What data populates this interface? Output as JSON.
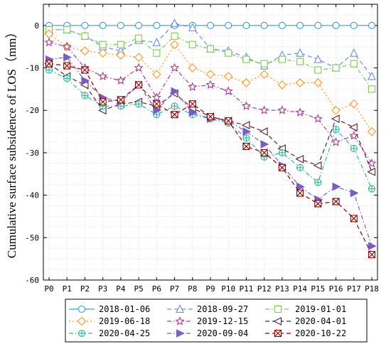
{
  "chart_data": {
    "type": "line",
    "ylabel": "Cumulative surface subsidence of LOS（mm）",
    "ylim": [
      -60,
      5
    ],
    "yticks": [
      0,
      -10,
      -20,
      -30,
      -40,
      -50,
      -60
    ],
    "grid": true,
    "legend_position": "bottom",
    "categories": [
      "P0",
      "P1",
      "P2",
      "P3",
      "P4",
      "P5",
      "P6",
      "P7",
      "P8",
      "P9",
      "P10",
      "P11",
      "P12",
      "P13",
      "P14",
      "P15",
      "P16",
      "P17",
      "P18"
    ],
    "series": [
      {
        "name": "2018-01-06",
        "color": "#2d9ee0",
        "dash": "",
        "marker": "circle",
        "values": [
          0,
          0,
          0,
          0,
          0,
          0,
          0,
          0,
          0,
          0,
          0,
          0,
          0,
          0,
          0,
          0,
          0,
          0,
          0
        ]
      },
      {
        "name": "2018-09-27",
        "color": "#6a8fe0",
        "dash": "6,4",
        "marker": "triangle-up",
        "values": [
          -1,
          -1,
          -2.5,
          -5,
          -6,
          -3.5,
          -4,
          0.5,
          -0.5,
          -5.5,
          -6,
          -7.5,
          -9.5,
          -7,
          -6.5,
          -8,
          -10,
          -6.5,
          -12
        ]
      },
      {
        "name": "2019-01-01",
        "color": "#7ec850",
        "dash": "6,3,1.5,3",
        "marker": "square",
        "values": [
          -1,
          -1,
          -2.5,
          -4.5,
          -4.5,
          -3,
          -6.5,
          -2.5,
          -4.5,
          -5.5,
          -6.5,
          -8,
          -9,
          -8,
          -8.5,
          -10.5,
          -10,
          -9,
          -15
        ]
      },
      {
        "name": "2019-06-18",
        "color": "#f7941d",
        "dash": "2,3",
        "marker": "diamond",
        "values": [
          -2,
          -5,
          -6,
          -6.5,
          -7,
          -7.5,
          -11.5,
          -4.5,
          -10,
          -11.5,
          -12,
          -13.5,
          -11.5,
          -14,
          -13.5,
          -13.5,
          -20,
          -18.5,
          -25
        ]
      },
      {
        "name": "2019-12-15",
        "color": "#a63c8f",
        "dash": "6,3,1.5,3",
        "marker": "star",
        "values": [
          -4,
          -5,
          -10,
          -12,
          -13,
          -10,
          -17,
          -10,
          -14.5,
          -14,
          -15.5,
          -19,
          -20,
          -20,
          -20.5,
          -22,
          -27.5,
          -26,
          -32.5
        ]
      },
      {
        "name": "2020-04-01",
        "color": "#5a1f2e",
        "dash": "6,4",
        "marker": "triangle-left",
        "values": [
          -9,
          -12,
          -14,
          -20,
          -18.5,
          -18,
          -19,
          -16,
          -19.5,
          -21.5,
          -22.5,
          -23.5,
          -25,
          -29,
          -31.5,
          -33,
          -22,
          -24,
          -34.5
        ]
      },
      {
        "name": "2020-04-25",
        "color": "#2eb39a",
        "dash": "6,3,1.5,3",
        "marker": "circle-plus",
        "values": [
          -10.5,
          -12.5,
          -16.5,
          -19,
          -19,
          -18.5,
          -21,
          -19,
          -21,
          -22,
          -23,
          -26.5,
          -31,
          -30,
          -33.5,
          -37,
          -24.5,
          -29,
          -38.5
        ]
      },
      {
        "name": "2020-09-04",
        "color": "#7a5cc4",
        "dash": "6,3,1.5,3",
        "marker": "triangle-right",
        "values": [
          -8,
          -7.5,
          -13,
          -17,
          -18,
          -14,
          -20,
          -15.5,
          -20.5,
          -22,
          -22.5,
          -25,
          -28,
          -33,
          -38,
          -41,
          -38,
          -39.5,
          -52
        ]
      },
      {
        "name": "2020-10-22",
        "color": "#8b0000",
        "dash": "6,4",
        "marker": "x-square",
        "values": [
          -9,
          -9.5,
          -10.5,
          -18,
          -17.5,
          -14,
          -18.5,
          -21,
          -18.5,
          -21.5,
          -22.5,
          -28.5,
          -30,
          -33.5,
          -39.5,
          -42,
          -41.5,
          -45.5,
          -54
        ]
      }
    ]
  }
}
